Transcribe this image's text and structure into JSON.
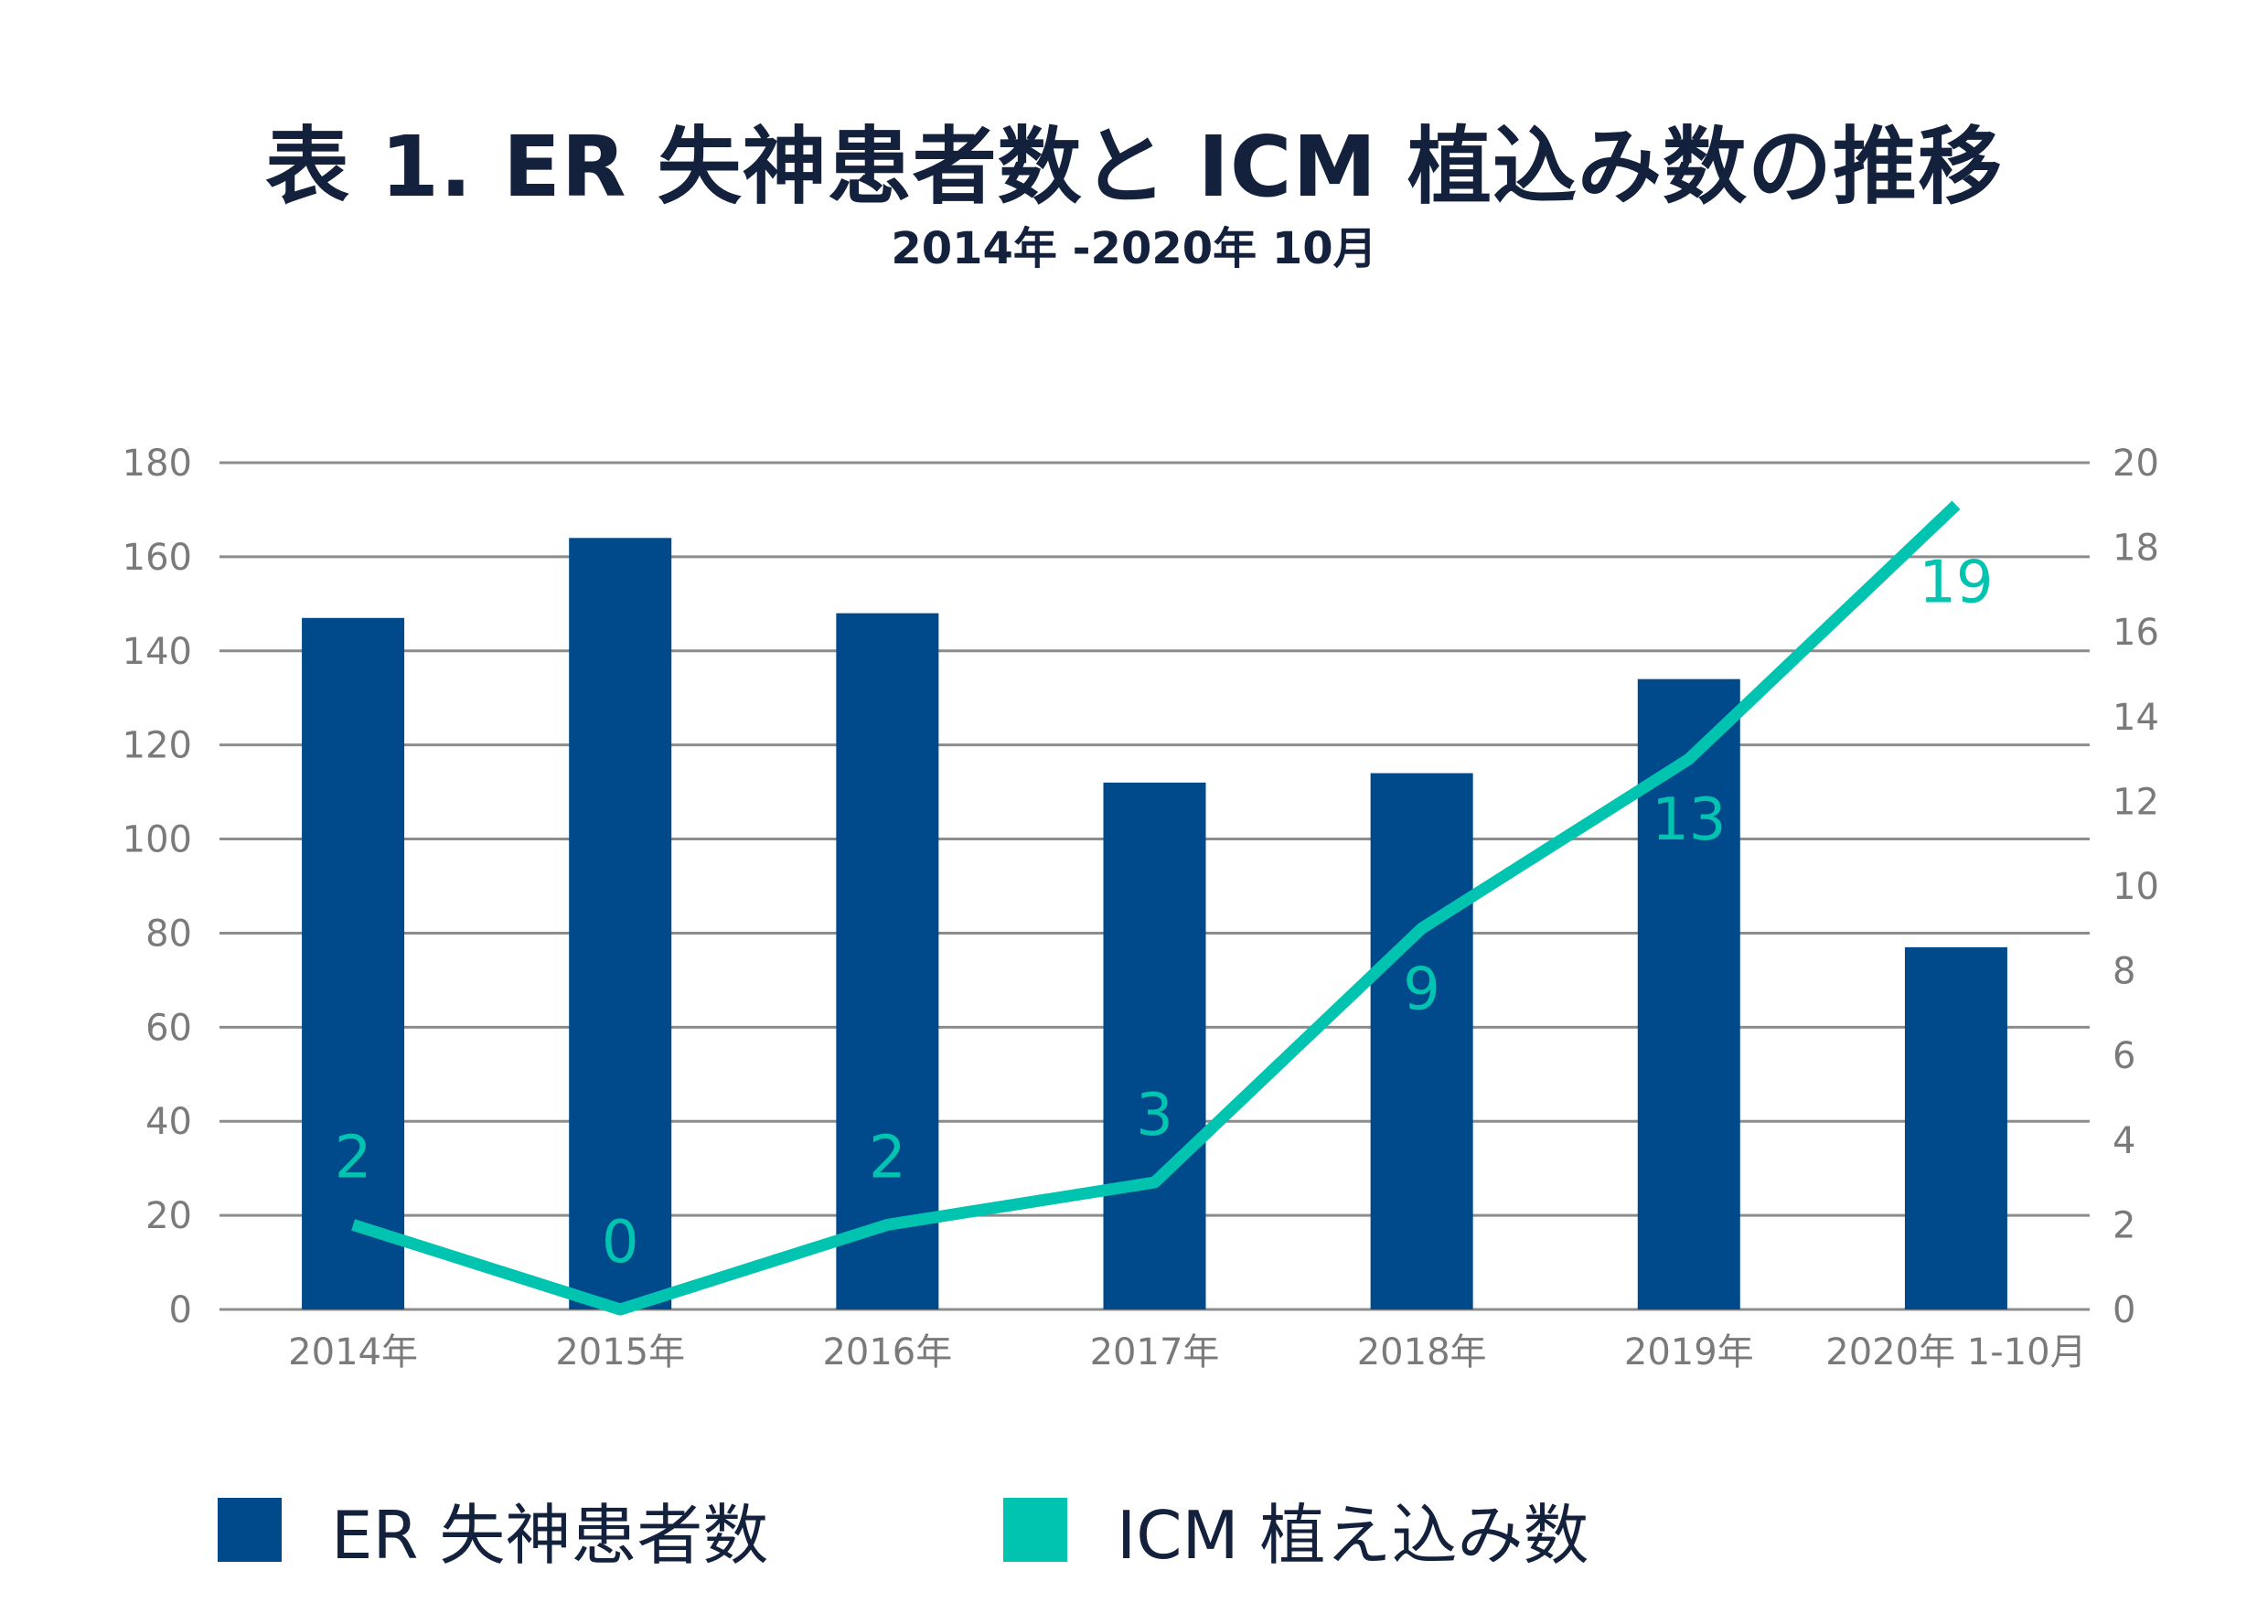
{
  "title": "表 1.  ER 失神患者数と ICM 植込み数の推移",
  "subtitle": "2014年 -2020年 10月",
  "colors": {
    "bar": "#004a8c",
    "line": "#00c4b0",
    "grid": "#8c8c8c",
    "tick_text": "#7a7a7a",
    "title_text": "#14213d"
  },
  "legend": {
    "bar_label": "ER 失神患者数",
    "line_label": "ICM 植え込み数"
  },
  "chart_data": {
    "type": "bar",
    "title": "表 1.  ER 失神患者数と ICM 植込み数の推移",
    "subtitle": "2014年 -2020年 10月",
    "categories": [
      "2014年",
      "2015年",
      "2016年",
      "2017年",
      "2018年",
      "2019年",
      "2020年 1-10月"
    ],
    "series": [
      {
        "name": "ER 失神患者数",
        "type": "bar",
        "axis": "left",
        "values": [
          147,
          164,
          148,
          112,
          114,
          134,
          77
        ]
      },
      {
        "name": "ICM 植え込み数",
        "type": "line",
        "axis": "right",
        "values": [
          2,
          0,
          2,
          3,
          9,
          13,
          19
        ],
        "data_labels": [
          "2",
          "0",
          "2",
          "3",
          "9",
          "13",
          "19"
        ]
      }
    ],
    "ylim_left": [
      0,
      180
    ],
    "yticks_left": [
      "0",
      "20",
      "40",
      "60",
      "80",
      "100",
      "120",
      "140",
      "160",
      "180"
    ],
    "ylim_right": [
      0,
      20
    ],
    "yticks_right": [
      "0",
      "2",
      "4",
      "6",
      "8",
      "10",
      "12",
      "14",
      "16",
      "18",
      "20"
    ],
    "grid": true,
    "legend_position": "bottom"
  }
}
